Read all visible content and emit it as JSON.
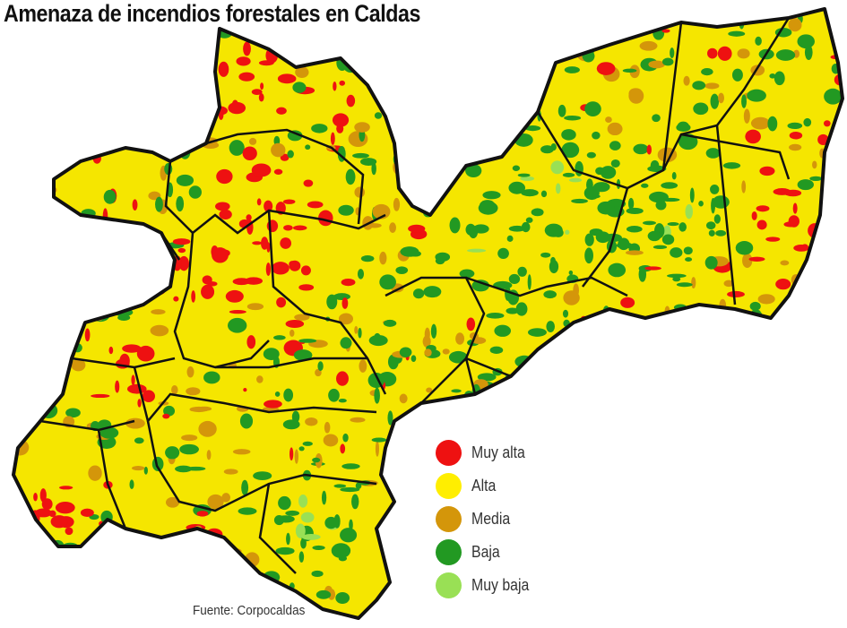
{
  "title": "Amenaza de incendios forestales en Caldas",
  "legend": [
    {
      "label": "Muy alta",
      "color": "#ee1111"
    },
    {
      "label": "Alta",
      "color": "#ffee00"
    },
    {
      "label": "Media",
      "color": "#d4960a"
    },
    {
      "label": "Baja",
      "color": "#229922"
    },
    {
      "label": "Muy baja",
      "color": "#99e055"
    }
  ],
  "source": "Fuente: Corpocaldas"
}
